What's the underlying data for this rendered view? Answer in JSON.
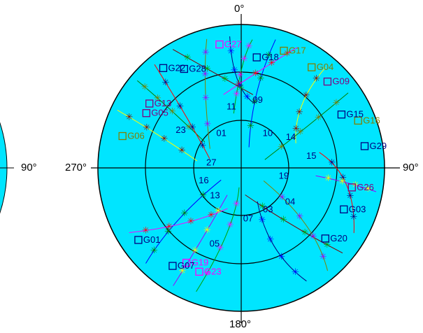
{
  "plot": {
    "labels": {
      "north": "0°",
      "south": "180°",
      "east": "90°",
      "west": "270°",
      "east_of_left_plot": "90°"
    },
    "colors": {
      "sky": "#00e5ff",
      "ring": "#000000",
      "axis": "#000000",
      "track_palette": [
        "#0000ff",
        "#ff00ff",
        "#ffff00",
        "#008000",
        "#ff0000",
        "#800000",
        "#808000",
        "#000080",
        "#00a000",
        "#a000ff"
      ]
    },
    "satellites": [
      {
        "id": "G18",
        "color": "#000080"
      },
      {
        "id": "G17",
        "color": "#808000"
      },
      {
        "id": "G22",
        "color": "#000080"
      },
      {
        "id": "G28",
        "color": "#000080"
      },
      {
        "id": "G05",
        "color": "#800080"
      },
      {
        "id": "G13",
        "color": "#800080"
      },
      {
        "id": "G06",
        "color": "#808000"
      },
      {
        "id": "G04",
        "color": "#808000"
      },
      {
        "id": "G09",
        "color": "#800080"
      },
      {
        "id": "G16",
        "color": "#808000"
      },
      {
        "id": "G15",
        "color": "#000080"
      },
      {
        "id": "G29",
        "color": "#000080"
      },
      {
        "id": "G26",
        "color": "#800080"
      },
      {
        "id": "G20",
        "color": "#000080"
      },
      {
        "id": "G03",
        "color": "#000080"
      },
      {
        "id": "G19",
        "color": "#ff00ff"
      },
      {
        "id": "G07",
        "color": "#000080"
      },
      {
        "id": "G27",
        "color": "#ff00ff"
      },
      {
        "id": "G01",
        "color": "#000080"
      },
      {
        "id": "G23",
        "color": "#ff00ff"
      }
    ],
    "track_numbers": [
      "09",
      "10",
      "14",
      "15",
      "19",
      "04",
      "03",
      "07",
      "05",
      "13",
      "16",
      "27",
      "23",
      "01",
      "11"
    ]
  }
}
